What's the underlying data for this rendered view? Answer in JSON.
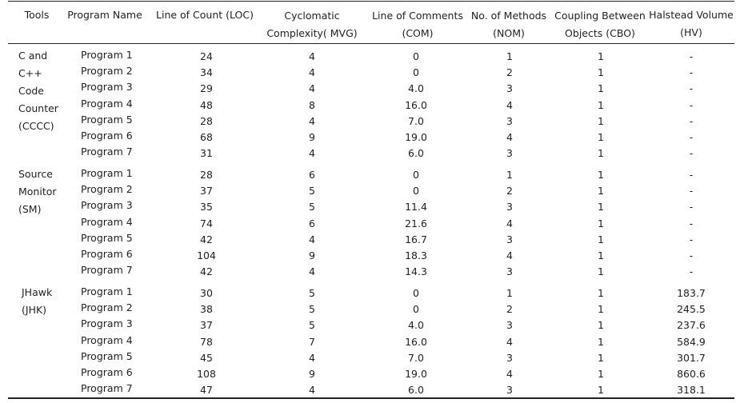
{
  "headers": [
    "Tools",
    "Program Name",
    "Line of Count (LOC)",
    "Cyclomatic\nComplexity( MVG)",
    "Line of Comments\n(COM)",
    "No. of Methods\n(NOM)",
    "Coupling Between\nObjects (CBO)",
    "Halstead Volume\n(HV)"
  ],
  "groups": [
    {
      "tool_lines": [
        "C and",
        "C++",
        "Code",
        "Counter",
        "(CCCC)"
      ],
      "rows": [
        [
          "Program 1",
          "24",
          "4",
          "0",
          "1",
          "1",
          "-"
        ],
        [
          "Program 2",
          "34",
          "4",
          "0",
          "2",
          "1",
          "-"
        ],
        [
          "Program 3",
          "29",
          "4",
          "4.0",
          "3",
          "1",
          "-"
        ],
        [
          "Program 4",
          "48",
          "8",
          "16.0",
          "4",
          "1",
          "-"
        ],
        [
          "Program 5",
          "28",
          "4",
          "7.0",
          "3",
          "1",
          "-"
        ],
        [
          "Program 6",
          "68",
          "9",
          "19.0",
          "4",
          "1",
          "-"
        ],
        [
          "Program 7",
          "31",
          "4",
          "6.0",
          "3",
          "1",
          "-"
        ]
      ]
    },
    {
      "tool_lines": [
        "Source",
        "Monitor",
        "(SM)"
      ],
      "rows": [
        [
          "Program 1",
          "28",
          "6",
          "0",
          "1",
          "1",
          "-"
        ],
        [
          "Program 2",
          "37",
          "5",
          "0",
          "2",
          "1",
          "-"
        ],
        [
          "Program 3",
          "35",
          "5",
          "11.4",
          "3",
          "1",
          "-"
        ],
        [
          "Program 4",
          "74",
          "6",
          "21.6",
          "4",
          "1",
          "-"
        ],
        [
          "Program 5",
          "42",
          "4",
          "16.7",
          "3",
          "1",
          "-"
        ],
        [
          "Program 6",
          "104",
          "9",
          "18.3",
          "4",
          "1",
          "-"
        ],
        [
          "Program 7",
          "42",
          "4",
          "14.3",
          "3",
          "1",
          "-"
        ]
      ]
    },
    {
      "tool_lines": [
        "JHawk",
        "(JHK)"
      ],
      "rows": [
        [
          "Program 1",
          "30",
          "5",
          "0",
          "1",
          "1",
          "183.7"
        ],
        [
          "Program 2",
          "38",
          "5",
          "0",
          "2",
          "1",
          "245.5"
        ],
        [
          "Program 3",
          "37",
          "5",
          "4.0",
          "3",
          "1",
          "237.6"
        ],
        [
          "Program 4",
          "78",
          "7",
          "16.0",
          "4",
          "1",
          "584.9"
        ],
        [
          "Program 5",
          "45",
          "4",
          "7.0",
          "3",
          "1",
          "301.7"
        ],
        [
          "Program 6",
          "108",
          "9",
          "19.0",
          "4",
          "1",
          "860.6"
        ],
        [
          "Program 7",
          "47",
          "4",
          "6.0",
          "3",
          "1",
          "318.1"
        ]
      ]
    }
  ]
}
